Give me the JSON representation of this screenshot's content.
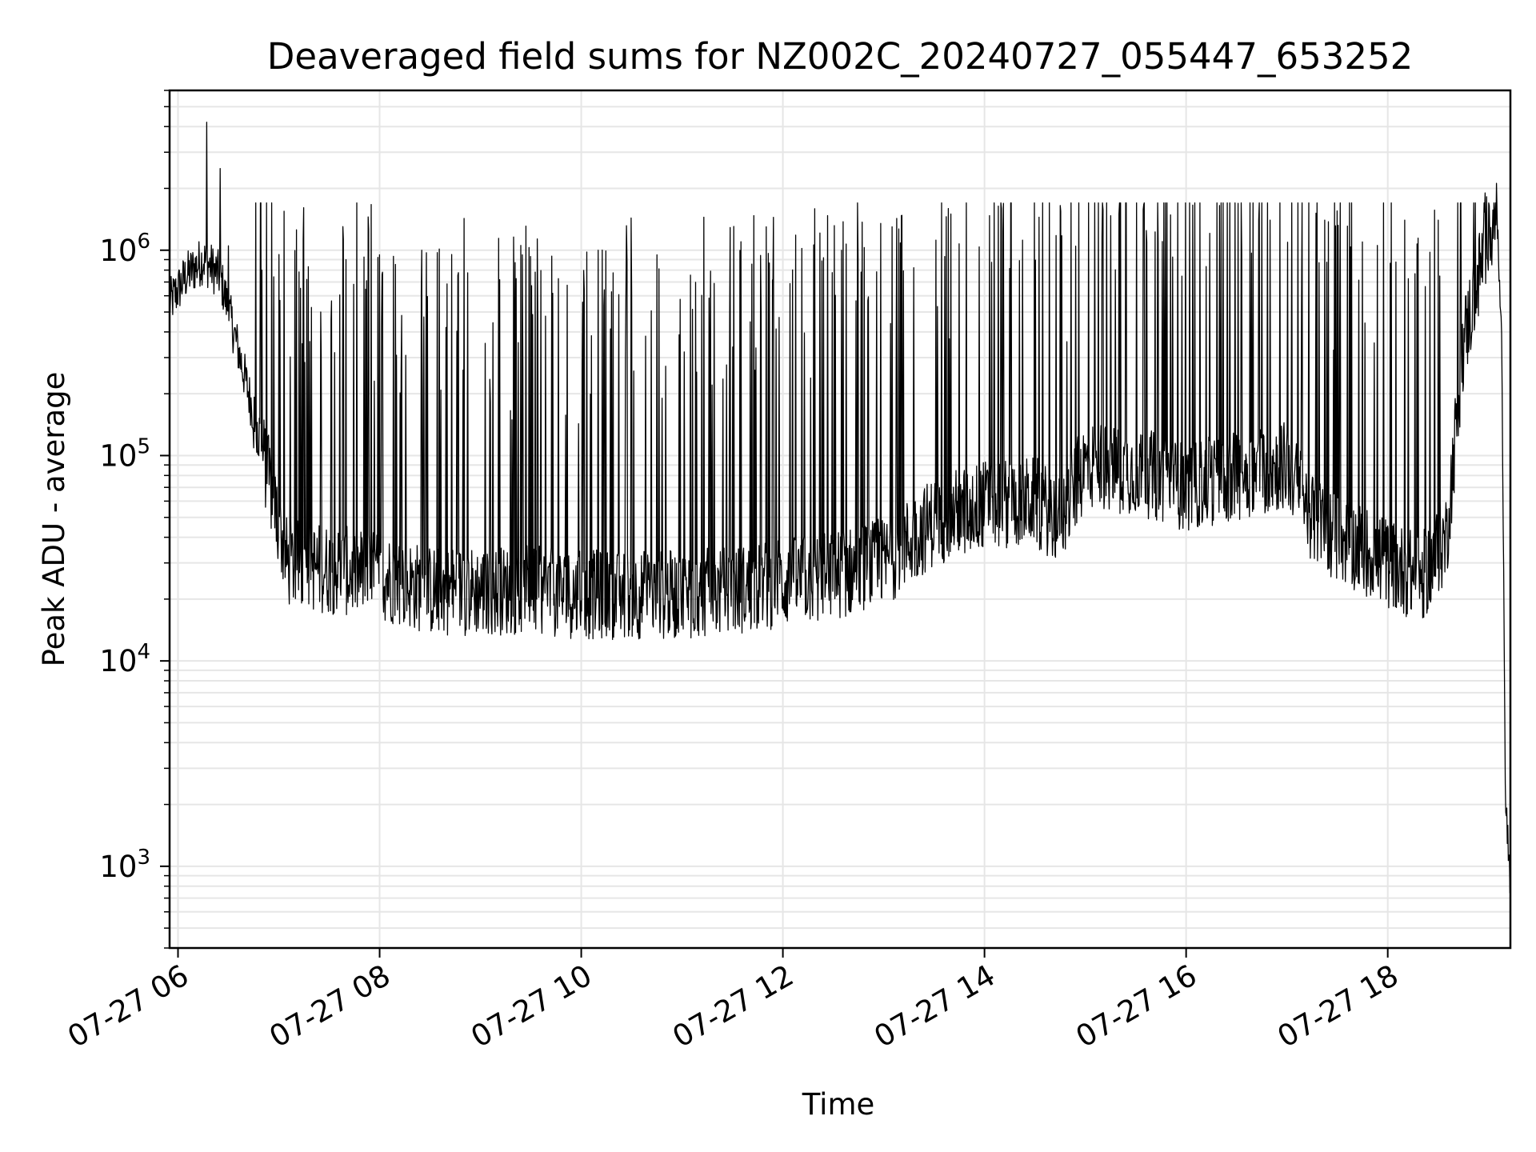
{
  "chart_data": {
    "type": "line",
    "title": "Deaveraged field sums for NZ002C_20240727_055447_653252",
    "xlabel": "Time",
    "ylabel": "Peak ADU - average",
    "yscale": "log",
    "ylim": [
      400,
      6000000
    ],
    "xlim": [
      "2024-07-27 05:55",
      "2024-07-27 19:13"
    ],
    "grid": true,
    "line_color": "#000000",
    "grid_color": "#e6e6e6",
    "x_ticks": [
      {
        "label": "07-27 06",
        "value": "2024-07-27 06:00"
      },
      {
        "label": "07-27 08",
        "value": "2024-07-27 08:00"
      },
      {
        "label": "07-27 10",
        "value": "2024-07-27 10:00"
      },
      {
        "label": "07-27 12",
        "value": "2024-07-27 12:00"
      },
      {
        "label": "07-27 14",
        "value": "2024-07-27 14:00"
      },
      {
        "label": "07-27 16",
        "value": "2024-07-27 16:00"
      },
      {
        "label": "07-27 18",
        "value": "2024-07-27 18:00"
      }
    ],
    "y_ticks": [
      {
        "base": "10",
        "exp": "3",
        "value": 1000
      },
      {
        "base": "10",
        "exp": "4",
        "value": 10000
      },
      {
        "base": "10",
        "exp": "5",
        "value": 100000
      },
      {
        "base": "10",
        "exp": "6",
        "value": 1000000
      }
    ],
    "series": [
      {
        "style": "noisy trace with frequent upward spikes",
        "x": [
          "2024-07-27 05:55",
          "2024-07-27 06:05",
          "2024-07-27 06:15",
          "2024-07-27 06:25",
          "2024-07-27 06:35",
          "2024-07-27 06:45",
          "2024-07-27 06:55",
          "2024-07-27 07:05",
          "2024-07-27 07:30",
          "2024-07-27 08:00",
          "2024-07-27 08:30",
          "2024-07-27 09:00",
          "2024-07-27 09:30",
          "2024-07-27 10:00",
          "2024-07-27 10:30",
          "2024-07-27 11:00",
          "2024-07-27 11:30",
          "2024-07-27 12:00",
          "2024-07-27 12:30",
          "2024-07-27 13:00",
          "2024-07-27 13:30",
          "2024-07-27 14:00",
          "2024-07-27 14:30",
          "2024-07-27 14:45",
          "2024-07-27 15:00",
          "2024-07-27 15:30",
          "2024-07-27 16:00",
          "2024-07-27 16:30",
          "2024-07-27 17:00",
          "2024-07-27 17:15",
          "2024-07-27 17:30",
          "2024-07-27 17:45",
          "2024-07-27 18:00",
          "2024-07-27 18:20",
          "2024-07-27 18:35",
          "2024-07-27 18:45",
          "2024-07-27 18:55",
          "2024-07-27 19:00",
          "2024-07-27 19:05",
          "2024-07-27 19:08",
          "2024-07-27 19:10",
          "2024-07-27 19:13"
        ],
        "y": [
          550000,
          750000,
          900000,
          750000,
          350000,
          160000,
          70000,
          30000,
          28000,
          26000,
          22000,
          22000,
          22000,
          21000,
          21000,
          21000,
          22000,
          24000,
          26000,
          30000,
          48000,
          58000,
          60000,
          48000,
          90000,
          85000,
          70000,
          80000,
          90000,
          50000,
          40000,
          35000,
          30000,
          25000,
          40000,
          350000,
          800000,
          1300000,
          1500000,
          300000,
          2500,
          700
        ]
      }
    ],
    "spikes": [
      {
        "x": "2024-07-27 06:17",
        "y": 4200000
      },
      {
        "x": "2024-07-27 06:25",
        "y": 2500000
      },
      {
        "x": "2024-07-27 06:30",
        "y": 1050000
      },
      {
        "x": "2024-07-27 06:50",
        "y": 800000
      },
      {
        "x": "2024-07-27 07:25",
        "y": 500000
      },
      {
        "x": "2024-07-27 07:40",
        "y": 900000
      },
      {
        "x": "2024-07-27 08:00",
        "y": 950000
      },
      {
        "x": "2024-07-27 08:25",
        "y": 1000000
      },
      {
        "x": "2024-07-27 09:25",
        "y": 950000
      },
      {
        "x": "2024-07-27 10:10",
        "y": 1000000
      },
      {
        "x": "2024-07-27 10:45",
        "y": 950000
      },
      {
        "x": "2024-07-27 11:35",
        "y": 1100000
      },
      {
        "x": "2024-07-27 11:50",
        "y": 1300000
      },
      {
        "x": "2024-07-27 12:35",
        "y": 1000000
      },
      {
        "x": "2024-07-27 13:05",
        "y": 1300000
      },
      {
        "x": "2024-07-27 13:40",
        "y": 1500000
      },
      {
        "x": "2024-07-27 14:10",
        "y": 1600000
      },
      {
        "x": "2024-07-27 14:45",
        "y": 1650000
      },
      {
        "x": "2024-07-27 15:20",
        "y": 1500000
      },
      {
        "x": "2024-07-27 16:20",
        "y": 1650000
      },
      {
        "x": "2024-07-27 16:50",
        "y": 1400000
      },
      {
        "x": "2024-07-27 18:10",
        "y": 1400000
      },
      {
        "x": "2024-07-27 18:30",
        "y": 1400000
      },
      {
        "x": "2024-07-27 18:58",
        "y": 1900000
      }
    ]
  }
}
